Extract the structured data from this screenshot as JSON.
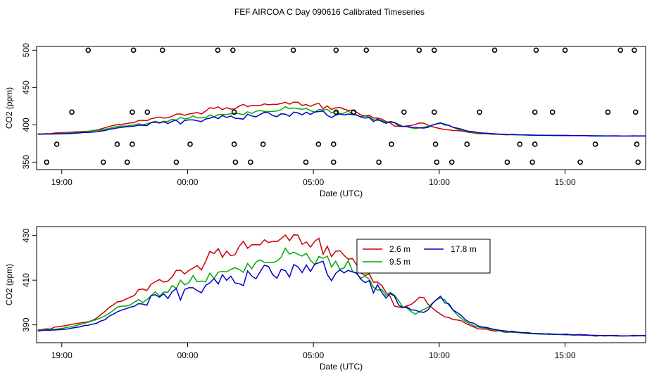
{
  "page": {
    "title": "FEF AIRCOA C  Day 090616  Calibrated Timeseries"
  },
  "chart_data": [
    {
      "type": "line",
      "panel": "top",
      "title": "FEF AIRCOA C  Day 090616  Calibrated Timeseries",
      "xlabel": "Date (UTC)",
      "ylabel": "CO2 (ppm)",
      "xlim": [
        -6,
        18.2
      ],
      "ylim": [
        340,
        505
      ],
      "xticks": [
        -5,
        0,
        5,
        10,
        15
      ],
      "xtick_labels": [
        "19:00",
        "00:00",
        "05:00",
        "10:00",
        "15:00"
      ],
      "yticks": [
        350,
        400,
        450,
        500
      ],
      "ytick_labels": [
        "350",
        "400",
        "450",
        "500"
      ],
      "series_x": {
        "start": -5.95,
        "step": 0.1666667
      },
      "series": [
        {
          "name": "2.6 m",
          "color": "#cc0000",
          "values": [
            387.8,
            387.9,
            388.2,
            388.1,
            389.0,
            389.2,
            389.5,
            389.8,
            390.2,
            390.5,
            390.8,
            391.1,
            391.4,
            392.0,
            393.0,
            394.5,
            396.0,
            397.8,
            399.0,
            400.3,
            400.6,
            401.5,
            402.4,
            403.1,
            405.8,
            406.0,
            405.4,
            408.2,
            409.3,
            410.3,
            409.1,
            409.6,
            411.4,
            414.4,
            414.5,
            412.8,
            414.4,
            415.4,
            416.5,
            414.6,
            418.4,
            422.9,
            421.9,
            424.1,
            420.3,
            423.0,
            421.0,
            421.4,
            425.1,
            427.4,
            424.3,
            425.9,
            425.9,
            425.8,
            428.1,
            426.8,
            427.4,
            427.3,
            428.6,
            430.2,
            427.7,
            430.3,
            430.2,
            426.1,
            427.1,
            424.8,
            427.4,
            428.8,
            421.6,
            425.2,
            420.5,
            422.9,
            423.2,
            421.1,
            419.4,
            419.7,
            416.9,
            413.2,
            412.1,
            412.9,
            409.1,
            409.1,
            407.6,
            404.5,
            402.7,
            398.4,
            398.0,
            397.7,
            398.5,
            399.1,
            400.6,
            402.4,
            402.2,
            399.3,
            397.6,
            396.1,
            394.8,
            393.6,
            393.3,
            392.3,
            392.2,
            391.8,
            390.6,
            389.8,
            389.0,
            388.2,
            388.1,
            388.1,
            387.5,
            387.2,
            387.3,
            386.8,
            386.6,
            387.2,
            386.8,
            386.4,
            386.6,
            386.5,
            386.1,
            386.0,
            386.1,
            385.9,
            386.0,
            385.7,
            385.7,
            385.7,
            385.9,
            385.5,
            385.4,
            385.7,
            385.6,
            385.5,
            385.2,
            384.9,
            385.2,
            385.0,
            385.1,
            385.2,
            385.3,
            385.0,
            385.0,
            385.1,
            385.3,
            385.2,
            385.1,
            385.0,
            385.1
          ]
        },
        {
          "name": "9.5 m",
          "color": "#00aa00",
          "values": [
            387.5,
            387.8,
            387.9,
            387.8,
            388.0,
            388.2,
            388.5,
            388.9,
            389.2,
            389.6,
            390.1,
            390.6,
            391.2,
            391.8,
            392.4,
            393.1,
            394.0,
            395.2,
            396.5,
            398.0,
            398.4,
            398.4,
            398.9,
            400.2,
            401.3,
            400.0,
            401.3,
            403.1,
            404.8,
            402.9,
            404.7,
            404.6,
            407.6,
            406.3,
            410.0,
            407.9,
            408.9,
            412.0,
            409.3,
            409.6,
            409.3,
            413.2,
            410.8,
            413.6,
            413.9,
            413.7,
            414.8,
            415.6,
            414.8,
            413.5,
            417.5,
            415.2,
            418.1,
            419.1,
            418.0,
            417.8,
            417.9,
            418.6,
            420.3,
            424.3,
            421.6,
            422.6,
            421.6,
            420.8,
            422.0,
            418.9,
            417.0,
            420.6,
            419.8,
            420.8,
            415.9,
            418.5,
            414.9,
            415.5,
            418.7,
            414.0,
            412.9,
            410.9,
            411.8,
            410.5,
            406.9,
            405.5,
            405.9,
            403.1,
            404.6,
            403.3,
            400.9,
            398.0,
            397.5,
            395.9,
            394.8,
            395.9,
            396.9,
            397.8,
            399.6,
            401.3,
            402.0,
            401.2,
            398.8,
            396.6,
            394.4,
            392.8,
            391.4,
            390.5,
            389.6,
            389.0,
            388.7,
            388.5,
            388.1,
            387.6,
            387.3,
            387.0,
            386.8,
            386.7,
            386.6,
            386.4,
            386.3,
            386.1,
            386.0,
            385.9,
            385.8,
            385.8,
            385.7,
            385.8,
            385.7,
            385.6,
            385.6,
            385.5,
            385.4,
            385.5,
            385.4,
            385.3,
            385.3,
            385.2,
            385.2,
            385.1,
            385.1,
            385.1,
            385.0,
            385.0,
            385.1,
            385.1,
            385.0,
            385.1,
            385.1,
            385.1,
            385.2
          ]
        },
        {
          "name": "17.8 m",
          "color": "#0000cc",
          "values": [
            387.2,
            387.5,
            387.6,
            387.6,
            387.7,
            387.8,
            388.0,
            388.1,
            388.5,
            388.8,
            389.1,
            389.7,
            389.8,
            390.3,
            390.7,
            391.7,
            392.3,
            393.9,
            394.8,
            395.9,
            396.6,
            397.2,
            397.9,
            398.3,
            399.5,
            399.3,
            398.8,
            403.1,
            403.5,
            402.4,
            403.9,
            401.8,
            404.8,
            406.2,
            401.1,
            405.9,
            406.6,
            406.6,
            405.3,
            404.4,
            407.7,
            408.8,
            410.7,
            408.3,
            412.5,
            409.9,
            411.8,
            408.8,
            408.4,
            407.6,
            414.1,
            411.9,
            410.6,
            413.8,
            416.7,
            416.1,
            412.4,
            410.9,
            414.8,
            414.3,
            411.4,
            417.0,
            416.0,
            413.4,
            416.8,
            413.9,
            417.1,
            417.8,
            418.5,
            412.6,
            409.8,
            413.0,
            414.6,
            413.3,
            414.4,
            413.7,
            413.2,
            410.4,
            408.9,
            409.8,
            404.3,
            408.0,
            404.4,
            402.0,
            404.0,
            402.9,
            398.9,
            397.7,
            398.0,
            396.7,
            396.6,
            395.8,
            395.6,
            396.6,
            399.4,
            401.2,
            402.8,
            399.9,
            399.4,
            396.6,
            395.5,
            394.1,
            392.2,
            391.1,
            390.7,
            389.5,
            389.0,
            388.8,
            388.3,
            387.9,
            387.6,
            387.4,
            387.1,
            386.9,
            386.8,
            386.6,
            386.4,
            386.3,
            386.2,
            386.1,
            386.0,
            385.9,
            385.9,
            385.8,
            385.7,
            385.7,
            385.6,
            385.6,
            385.5,
            385.5,
            385.4,
            385.4,
            385.3,
            385.3,
            385.2,
            385.2,
            385.2,
            385.2,
            385.1,
            385.1,
            385.1,
            385.1,
            385.1,
            385.1,
            385.2,
            385.2,
            385.3
          ]
        }
      ],
      "markers": {
        "style": "open-circle",
        "points": [
          [
            -5.6,
            350
          ],
          [
            -5.2,
            374
          ],
          [
            -4.6,
            417
          ],
          [
            -3.95,
            500
          ],
          [
            -3.35,
            350
          ],
          [
            -2.8,
            374
          ],
          [
            -2.4,
            350
          ],
          [
            -2.2,
            374
          ],
          [
            -2.2,
            417
          ],
          [
            -2.15,
            500
          ],
          [
            -1.6,
            417
          ],
          [
            -1.0,
            500
          ],
          [
            -0.45,
            350
          ],
          [
            0.1,
            374
          ],
          [
            1.2,
            500
          ],
          [
            1.8,
            500
          ],
          [
            1.85,
            417
          ],
          [
            1.85,
            374
          ],
          [
            1.9,
            350
          ],
          [
            2.5,
            350
          ],
          [
            3.0,
            374
          ],
          [
            4.2,
            500
          ],
          [
            4.7,
            350
          ],
          [
            5.2,
            374
          ],
          [
            5.8,
            374
          ],
          [
            5.8,
            350
          ],
          [
            5.9,
            500
          ],
          [
            5.9,
            417
          ],
          [
            6.6,
            417
          ],
          [
            7.1,
            500
          ],
          [
            7.6,
            350
          ],
          [
            8.1,
            374
          ],
          [
            8.6,
            417
          ],
          [
            9.2,
            500
          ],
          [
            9.8,
            500
          ],
          [
            9.8,
            417
          ],
          [
            9.85,
            374
          ],
          [
            9.9,
            350
          ],
          [
            10.5,
            350
          ],
          [
            11.1,
            374
          ],
          [
            11.6,
            417
          ],
          [
            12.2,
            500
          ],
          [
            12.7,
            350
          ],
          [
            13.2,
            374
          ],
          [
            13.7,
            350
          ],
          [
            13.8,
            374
          ],
          [
            13.8,
            417
          ],
          [
            13.85,
            500
          ],
          [
            14.5,
            417
          ],
          [
            15.0,
            500
          ],
          [
            15.6,
            350
          ],
          [
            16.2,
            374
          ],
          [
            16.7,
            417
          ],
          [
            17.2,
            500
          ],
          [
            17.75,
            500
          ],
          [
            17.8,
            417
          ],
          [
            17.85,
            374
          ],
          [
            17.9,
            350
          ]
        ]
      }
    },
    {
      "type": "line",
      "panel": "bottom",
      "xlabel": "Date (UTC)",
      "ylabel": "CO2 (ppm)",
      "xlim": [
        -6,
        18.2
      ],
      "ylim": [
        382,
        434
      ],
      "xticks": [
        -5,
        0,
        5,
        10,
        15
      ],
      "xtick_labels": [
        "19:00",
        "00:00",
        "05:00",
        "10:00",
        "15:00"
      ],
      "yticks": [
        390,
        410,
        430
      ],
      "ytick_labels": [
        "390",
        "410",
        "430"
      ],
      "series_ref": "same series as top panel",
      "legend": {
        "location": "top-center",
        "entries": [
          {
            "name": "2.6 m",
            "color": "#cc0000"
          },
          {
            "name": "17.8 m",
            "color": "#0000cc"
          },
          {
            "name": "9.5 m",
            "color": "#00aa00"
          }
        ]
      }
    }
  ]
}
